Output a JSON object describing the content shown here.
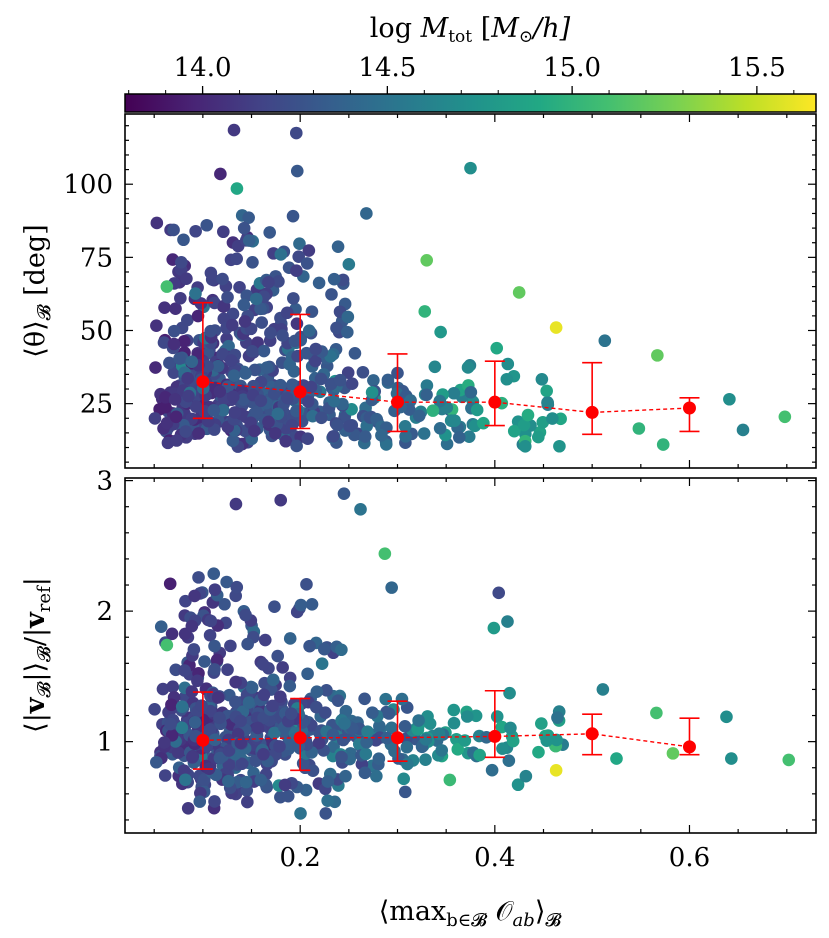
{
  "chart_data": {
    "type": "scatter",
    "colorbar": {
      "label": "log M_tot [M⊙/h]",
      "label_parts": {
        "pre": "log ",
        "M": "M",
        "sub": "tot",
        "unit_open": " [",
        "unit_M": "M",
        "sun": "⊙",
        "unit_close": "/h]"
      },
      "range": [
        13.79,
        15.66
      ],
      "ticks": [
        14.0,
        14.5,
        15.0,
        15.5
      ],
      "tick_labels": [
        "14.0",
        "14.5",
        "15.0",
        "15.5"
      ],
      "colormap": "viridis"
    },
    "xlabel": "⟨max_{b∈B} O_ab⟩_B",
    "xlabel_parts": {
      "open": "⟨max",
      "sub": "b∈𝓑",
      "sym": " 𝒪",
      "sub2": "ab",
      "close": "⟩",
      "sub3": "𝓑"
    },
    "xlim": [
      0.02,
      0.73
    ],
    "xticks": [
      0.2,
      0.4,
      0.6
    ],
    "xtick_labels": [
      "0.2",
      "0.4",
      "0.6"
    ],
    "panels": [
      {
        "ylabel": "⟨θ⟩_B [deg]",
        "ylabel_parts": {
          "open": "⟨θ⟩",
          "sub": "𝓑",
          "unit": " [deg]"
        },
        "ylim": [
          3,
          124
        ],
        "yticks": [
          25,
          50,
          75,
          100
        ],
        "ytick_labels": [
          "25",
          "50",
          "75",
          "100"
        ],
        "binned": [
          {
            "x": 0.1,
            "y": 32.5,
            "lo": 20.0,
            "hi": 59.5
          },
          {
            "x": 0.2,
            "y": 29.0,
            "lo": 16.5,
            "hi": 55.5
          },
          {
            "x": 0.3,
            "y": 25.5,
            "lo": 15.5,
            "hi": 42.0
          },
          {
            "x": 0.4,
            "y": 25.5,
            "lo": 17.5,
            "hi": 39.5
          },
          {
            "x": 0.5,
            "y": 22.0,
            "lo": 14.5,
            "hi": 39.0
          },
          {
            "x": 0.6,
            "y": 23.5,
            "lo": 15.5,
            "hi": 27.0
          }
        ],
        "highlight_points": [
          {
            "x": 0.132,
            "y": 118.5,
            "m": 14.1
          },
          {
            "x": 0.196,
            "y": 117.5,
            "m": 14.2
          },
          {
            "x": 0.375,
            "y": 105.5,
            "m": 14.7
          },
          {
            "x": 0.197,
            "y": 104.5,
            "m": 14.3
          },
          {
            "x": 0.118,
            "y": 103.5,
            "m": 14.0
          },
          {
            "x": 0.135,
            "y": 98.5,
            "m": 14.9
          },
          {
            "x": 0.268,
            "y": 90.0,
            "m": 14.4
          },
          {
            "x": 0.063,
            "y": 65.0,
            "m": 15.1
          },
          {
            "x": 0.33,
            "y": 74.0,
            "m": 15.2
          },
          {
            "x": 0.463,
            "y": 51.0,
            "m": 15.6
          },
          {
            "x": 0.425,
            "y": 63.0,
            "m": 15.2
          },
          {
            "x": 0.567,
            "y": 41.5,
            "m": 15.2
          },
          {
            "x": 0.698,
            "y": 20.5,
            "m": 15.1
          },
          {
            "x": 0.513,
            "y": 46.5,
            "m": 14.5
          },
          {
            "x": 0.328,
            "y": 56.5,
            "m": 15.0
          },
          {
            "x": 0.548,
            "y": 16.5,
            "m": 15.0
          },
          {
            "x": 0.573,
            "y": 11.0,
            "m": 15.0
          },
          {
            "x": 0.641,
            "y": 26.5,
            "m": 14.7
          },
          {
            "x": 0.655,
            "y": 16.0,
            "m": 14.6
          }
        ],
        "n_background_points": 620
      },
      {
        "ylabel": "⟨|v_B|⟩_B / |v_ref|",
        "ylabel_parts": {
          "open": "⟨|",
          "v": "v",
          "sub": "𝓑",
          "mid": "|⟩",
          "sub2": "𝓑",
          "slash": "/|",
          "v2": "v",
          "sub3": "ref",
          "close": "|"
        },
        "ylim": [
          0.3,
          3.02
        ],
        "yticks": [
          1,
          2,
          3
        ],
        "ytick_labels": [
          "1",
          "2",
          "3"
        ],
        "binned": [
          {
            "x": 0.1,
            "y": 1.01,
            "lo": 0.79,
            "hi": 1.38
          },
          {
            "x": 0.2,
            "y": 1.03,
            "lo": 0.78,
            "hi": 1.33
          },
          {
            "x": 0.3,
            "y": 1.03,
            "lo": 0.85,
            "hi": 1.31
          },
          {
            "x": 0.4,
            "y": 1.04,
            "lo": 0.88,
            "hi": 1.39
          },
          {
            "x": 0.5,
            "y": 1.06,
            "lo": 0.9,
            "hi": 1.21
          },
          {
            "x": 0.6,
            "y": 0.96,
            "lo": 0.9,
            "hi": 1.18
          }
        ],
        "highlight_points": [
          {
            "x": 0.245,
            "y": 2.9,
            "m": 14.3
          },
          {
            "x": 0.134,
            "y": 2.82,
            "m": 14.1
          },
          {
            "x": 0.18,
            "y": 2.85,
            "m": 14.1
          },
          {
            "x": 0.262,
            "y": 2.78,
            "m": 14.5
          },
          {
            "x": 0.287,
            "y": 2.44,
            "m": 15.1
          },
          {
            "x": 0.294,
            "y": 2.18,
            "m": 14.4
          },
          {
            "x": 0.404,
            "y": 2.14,
            "m": 14.2
          },
          {
            "x": 0.399,
            "y": 1.87,
            "m": 14.8
          },
          {
            "x": 0.413,
            "y": 1.92,
            "m": 14.6
          },
          {
            "x": 0.063,
            "y": 1.74,
            "m": 15.1
          },
          {
            "x": 0.463,
            "y": 0.78,
            "m": 15.6
          },
          {
            "x": 0.702,
            "y": 0.86,
            "m": 15.1
          },
          {
            "x": 0.566,
            "y": 1.22,
            "m": 15.1
          },
          {
            "x": 0.511,
            "y": 1.4,
            "m": 14.6
          },
          {
            "x": 0.638,
            "y": 1.19,
            "m": 14.7
          },
          {
            "x": 0.643,
            "y": 0.87,
            "m": 14.7
          },
          {
            "x": 0.525,
            "y": 0.87,
            "m": 14.9
          },
          {
            "x": 0.583,
            "y": 0.91,
            "m": 15.2
          }
        ],
        "n_background_points": 620
      }
    ]
  }
}
